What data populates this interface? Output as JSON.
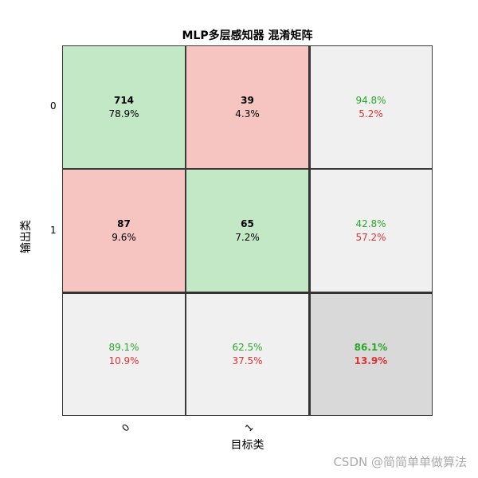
{
  "chart_data": {
    "type": "heatmap",
    "title": "MLP多层感知器 混淆矩阵",
    "xlabel": "目标类",
    "ylabel": "输出类",
    "x_tick_labels": [
      "0",
      "1"
    ],
    "y_tick_labels": [
      "0",
      "1"
    ],
    "matrix": [
      [
        {
          "count": "714",
          "pct": "78.9%"
        },
        {
          "count": "39",
          "pct": "4.3%"
        }
      ],
      [
        {
          "count": "87",
          "pct": "9.6%"
        },
        {
          "count": "65",
          "pct": "7.2%"
        }
      ]
    ],
    "row_summary": [
      {
        "good": "94.8%",
        "bad": "5.2%"
      },
      {
        "good": "42.8%",
        "bad": "57.2%"
      }
    ],
    "col_summary": [
      {
        "good": "89.1%",
        "bad": "10.9%"
      },
      {
        "good": "62.5%",
        "bad": "37.5%"
      }
    ],
    "overall": {
      "good": "86.1%",
      "bad": "13.9%"
    },
    "colors": {
      "correct": "#c3e8c6",
      "incorrect": "#f6c5c1",
      "summary": "#f0f0f0",
      "overall": "#d9d9d9",
      "good_text": "#2aa62a",
      "bad_text": "#e03232"
    }
  },
  "watermark": "CSDN @简简单单做算法"
}
